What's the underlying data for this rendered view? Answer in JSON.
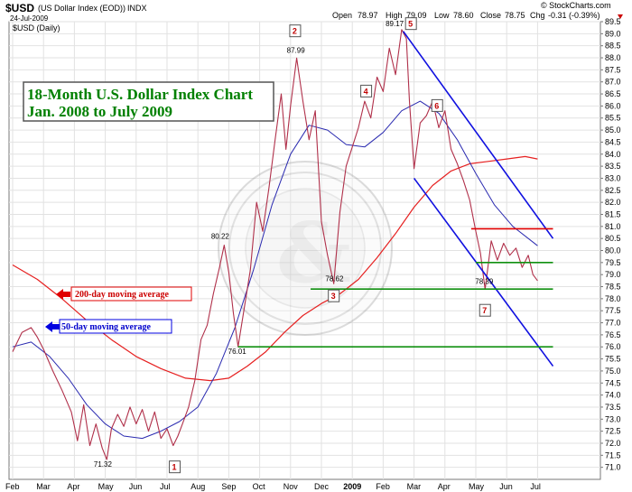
{
  "header": {
    "symbol": "$USD",
    "name": "(US Dollar Index (EOD))",
    "exchange": "INDX",
    "date": "24-Jul-2009",
    "open_label": "Open",
    "open": "78.97",
    "high_label": "High",
    "high": "79.09",
    "low_label": "Low",
    "low": "78.60",
    "close_label": "Close",
    "close": "78.75",
    "chg_label": "Chg",
    "chg": "-0.31 (-0.39%)",
    "brand": "© StockCharts.com",
    "panel_label": "$USD (Daily)"
  },
  "title": {
    "line1": "18-Month U.S. Dollar Index Chart",
    "line2": "Jan. 2008 to July 2009"
  },
  "colors": {
    "price": "#b0304a",
    "ma50": "#2a2ab0",
    "ma200": "#e62020",
    "channel": "#1010e0",
    "support": "#109010",
    "resistance": "#e00000",
    "title_text": "#008000",
    "label_red": "#cc0000",
    "label_blue": "#0000cc"
  },
  "chart_data": {
    "type": "line",
    "x_tick_labels": [
      "Feb",
      "Mar",
      "Apr",
      "May",
      "Jun",
      "Jul",
      "Aug",
      "Sep",
      "Oct",
      "Nov",
      "Dec",
      "2009",
      "Feb",
      "Mar",
      "Apr",
      "May",
      "Jun",
      "Jul"
    ],
    "y_range": [
      70.5,
      89.5
    ],
    "y_tick_labels": [
      "71.0",
      "71.5",
      "72.0",
      "72.5",
      "73.0",
      "73.5",
      "74.0",
      "74.5",
      "75.0",
      "75.5",
      "76.0",
      "76.5",
      "77.0",
      "77.5",
      "78.0",
      "78.5",
      "79.0",
      "79.5",
      "80.0",
      "80.5",
      "81.0",
      "81.5",
      "82.0",
      "82.5",
      "83.0",
      "83.5",
      "84.0",
      "84.5",
      "85.0",
      "85.5",
      "86.0",
      "86.5",
      "87.0",
      "87.5",
      "88.0",
      "88.5",
      "89.0",
      "89.5"
    ],
    "grid": true,
    "series": [
      {
        "key": "price",
        "points": [
          [
            0,
            75.8
          ],
          [
            0.3,
            76.6
          ],
          [
            0.6,
            76.8
          ],
          [
            0.8,
            76.4
          ],
          [
            1,
            75.9
          ],
          [
            1.3,
            75.0
          ],
          [
            1.6,
            74.2
          ],
          [
            1.9,
            73.3
          ],
          [
            2.1,
            72.1
          ],
          [
            2.3,
            73.6
          ],
          [
            2.5,
            71.9
          ],
          [
            2.7,
            72.8
          ],
          [
            2.9,
            71.8
          ],
          [
            3.05,
            71.32
          ],
          [
            3.2,
            72.6
          ],
          [
            3.4,
            73.2
          ],
          [
            3.6,
            72.7
          ],
          [
            3.8,
            73.5
          ],
          [
            4.0,
            72.8
          ],
          [
            4.2,
            73.4
          ],
          [
            4.4,
            72.5
          ],
          [
            4.6,
            73.3
          ],
          [
            4.8,
            72.2
          ],
          [
            5.0,
            72.6
          ],
          [
            5.2,
            71.9
          ],
          [
            5.35,
            72.3
          ],
          [
            5.5,
            72.8
          ],
          [
            5.7,
            73.5
          ],
          [
            5.9,
            74.6
          ],
          [
            6.1,
            76.3
          ],
          [
            6.3,
            76.9
          ],
          [
            6.5,
            78.2
          ],
          [
            6.7,
            79.3
          ],
          [
            6.85,
            80.22
          ],
          [
            7.0,
            79.1
          ],
          [
            7.15,
            77.4
          ],
          [
            7.3,
            76.01
          ],
          [
            7.5,
            77.6
          ],
          [
            7.7,
            79.2
          ],
          [
            7.9,
            82.0
          ],
          [
            8.1,
            80.8
          ],
          [
            8.3,
            82.6
          ],
          [
            8.5,
            84.6
          ],
          [
            8.7,
            86.5
          ],
          [
            8.85,
            84.2
          ],
          [
            9.0,
            86.0
          ],
          [
            9.2,
            87.99
          ],
          [
            9.4,
            86.2
          ],
          [
            9.6,
            84.6
          ],
          [
            9.8,
            85.8
          ],
          [
            10.0,
            81.2
          ],
          [
            10.2,
            79.8
          ],
          [
            10.4,
            78.62
          ],
          [
            10.6,
            81.6
          ],
          [
            10.8,
            83.5
          ],
          [
            11.0,
            84.3
          ],
          [
            11.2,
            85.1
          ],
          [
            11.4,
            86.2
          ],
          [
            11.6,
            85.5
          ],
          [
            11.8,
            87.2
          ],
          [
            12.0,
            86.6
          ],
          [
            12.2,
            88.4
          ],
          [
            12.4,
            87.3
          ],
          [
            12.6,
            89.17
          ],
          [
            12.75,
            88.8
          ],
          [
            12.85,
            86.2
          ],
          [
            13.0,
            83.4
          ],
          [
            13.2,
            85.3
          ],
          [
            13.4,
            85.6
          ],
          [
            13.6,
            86.2
          ],
          [
            13.8,
            85.1
          ],
          [
            14.0,
            85.8
          ],
          [
            14.2,
            84.2
          ],
          [
            14.4,
            83.6
          ],
          [
            14.6,
            82.9
          ],
          [
            14.8,
            82.1
          ],
          [
            15.0,
            80.8
          ],
          [
            15.15,
            79.9
          ],
          [
            15.3,
            78.39
          ],
          [
            15.5,
            80.4
          ],
          [
            15.7,
            79.6
          ],
          [
            15.9,
            80.3
          ],
          [
            16.1,
            79.8
          ],
          [
            16.3,
            80.1
          ],
          [
            16.5,
            79.3
          ],
          [
            16.7,
            79.8
          ],
          [
            16.85,
            79.0
          ],
          [
            17.0,
            78.75
          ]
        ]
      },
      {
        "key": "ma50",
        "points": [
          [
            0,
            76.0
          ],
          [
            0.6,
            76.2
          ],
          [
            1.2,
            75.6
          ],
          [
            1.8,
            74.7
          ],
          [
            2.4,
            73.6
          ],
          [
            3.0,
            72.8
          ],
          [
            3.6,
            72.3
          ],
          [
            4.2,
            72.2
          ],
          [
            4.8,
            72.5
          ],
          [
            5.4,
            72.9
          ],
          [
            6.0,
            73.5
          ],
          [
            6.6,
            74.9
          ],
          [
            7.2,
            76.8
          ],
          [
            7.8,
            79.2
          ],
          [
            8.4,
            81.9
          ],
          [
            9.0,
            84.0
          ],
          [
            9.6,
            85.2
          ],
          [
            10.2,
            85.0
          ],
          [
            10.8,
            84.4
          ],
          [
            11.4,
            84.3
          ],
          [
            12.0,
            84.9
          ],
          [
            12.6,
            85.8
          ],
          [
            13.2,
            86.2
          ],
          [
            13.8,
            85.7
          ],
          [
            14.4,
            84.6
          ],
          [
            15.0,
            83.2
          ],
          [
            15.6,
            81.9
          ],
          [
            16.2,
            81.0
          ],
          [
            17.0,
            80.2
          ]
        ]
      },
      {
        "key": "ma200",
        "points": [
          [
            0,
            79.4
          ],
          [
            0.8,
            78.8
          ],
          [
            1.6,
            78.0
          ],
          [
            2.4,
            77.1
          ],
          [
            3.2,
            76.3
          ],
          [
            4.0,
            75.6
          ],
          [
            4.8,
            75.1
          ],
          [
            5.6,
            74.7
          ],
          [
            6.4,
            74.6
          ],
          [
            7.0,
            74.7
          ],
          [
            7.6,
            75.2
          ],
          [
            8.2,
            75.8
          ],
          [
            8.8,
            76.6
          ],
          [
            9.4,
            77.3
          ],
          [
            10.0,
            77.8
          ],
          [
            10.6,
            78.2
          ],
          [
            11.2,
            78.8
          ],
          [
            11.8,
            79.7
          ],
          [
            12.4,
            80.7
          ],
          [
            13.0,
            81.8
          ],
          [
            13.6,
            82.7
          ],
          [
            14.2,
            83.3
          ],
          [
            14.8,
            83.6
          ],
          [
            15.4,
            83.7
          ],
          [
            16.0,
            83.8
          ],
          [
            16.6,
            83.9
          ],
          [
            17.0,
            83.8
          ]
        ]
      }
    ],
    "annotations": [
      {
        "x": 2.95,
        "y": 71.32,
        "text": "71.32",
        "dy": 8
      },
      {
        "x": 6.75,
        "y": 80.22,
        "text": "80.22",
        "dy": -7
      },
      {
        "x": 7.3,
        "y": 76.01,
        "text": "76.01",
        "dy": 8
      },
      {
        "x": 9.2,
        "y": 87.99,
        "text": "87.99",
        "dy": -6
      },
      {
        "x": 10.45,
        "y": 78.62,
        "text": "78.62",
        "dy": -3
      },
      {
        "x": 12.4,
        "y": 89.17,
        "text": "89.17",
        "dy": -4
      },
      {
        "x": 15.3,
        "y": 78.39,
        "text": "78.39",
        "dy": -6
      }
    ],
    "wave_labels": [
      {
        "text": "1",
        "x": 5.25,
        "y": 71.0
      },
      {
        "text": "2",
        "x": 9.15,
        "y": 89.1
      },
      {
        "text": "3",
        "x": 10.4,
        "y": 78.1
      },
      {
        "text": "4",
        "x": 11.45,
        "y": 86.6
      },
      {
        "text": "5",
        "x": 12.9,
        "y": 89.4
      },
      {
        "text": "6",
        "x": 13.75,
        "y": 86.0
      },
      {
        "text": "7",
        "x": 15.3,
        "y": 77.5
      }
    ],
    "trend_lines": [
      {
        "kind": "channel",
        "from": [
          12.65,
          89.1
        ],
        "to": [
          17.5,
          80.5
        ]
      },
      {
        "kind": "channel",
        "from": [
          13.0,
          83.0
        ],
        "to": [
          17.5,
          75.2
        ]
      },
      {
        "kind": "resistance",
        "from": [
          14.85,
          80.9
        ],
        "to": [
          17.5,
          80.9
        ]
      },
      {
        "kind": "support",
        "from": [
          15.0,
          79.5
        ],
        "to": [
          17.5,
          79.5
        ]
      },
      {
        "kind": "support",
        "from": [
          9.65,
          78.4
        ],
        "to": [
          17.5,
          78.4
        ]
      },
      {
        "kind": "support",
        "from": [
          7.3,
          76.0
        ],
        "to": [
          17.5,
          76.0
        ]
      }
    ]
  },
  "legend": {
    "ma200_label": "200-day moving average",
    "ma50_label": "50-day moving average"
  }
}
